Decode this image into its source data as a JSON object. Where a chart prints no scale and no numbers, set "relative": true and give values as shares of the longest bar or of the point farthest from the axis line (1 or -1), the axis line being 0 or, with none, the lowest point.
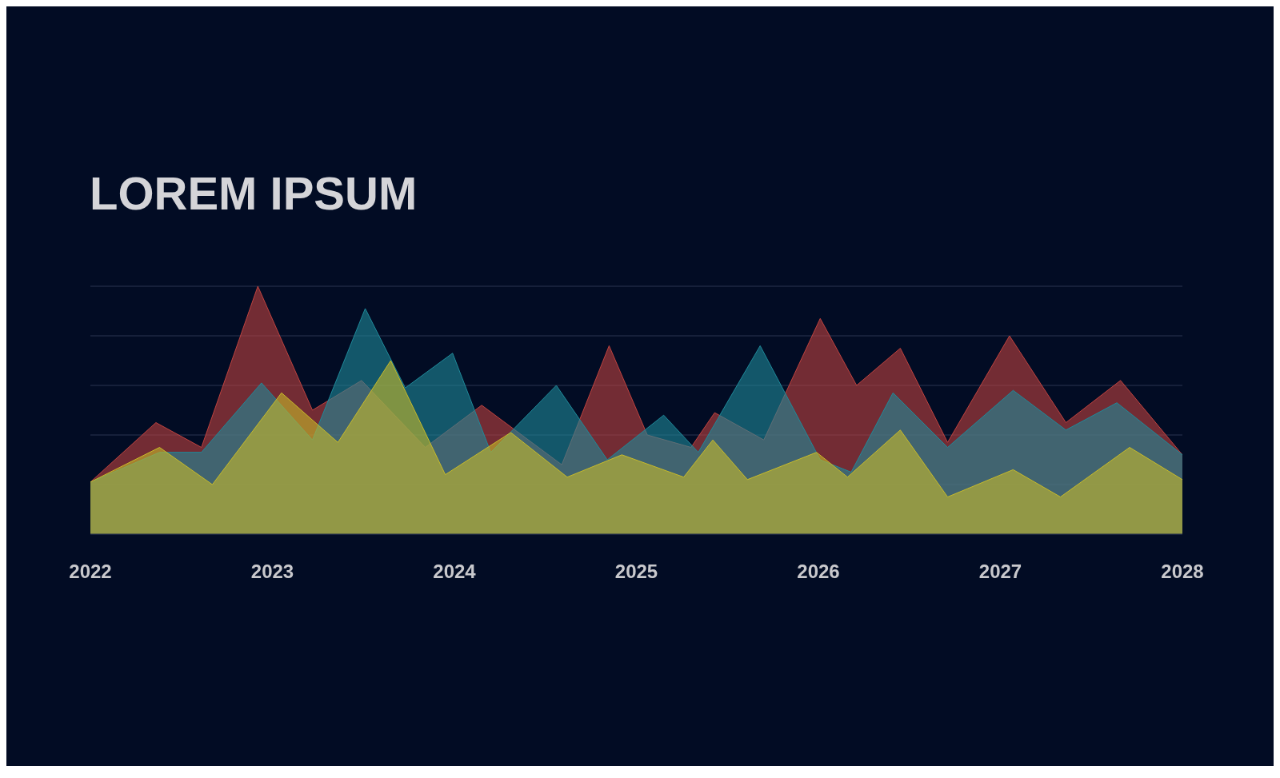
{
  "chart_data": {
    "type": "area",
    "title": "LOREM IPSUM",
    "relative": true,
    "grid": "y",
    "xlim": [
      2022,
      2028
    ],
    "xticks": [
      2022,
      2023,
      2024,
      2025,
      2026,
      2027,
      2028
    ],
    "series": [
      {
        "color": "#c0433f",
        "x": [
          2022,
          2022.36,
          2022.61,
          2022.92,
          2023.22,
          2023.49,
          2023.84,
          2024.15,
          2024.37,
          2024.59,
          2024.85,
          2025.06,
          2025.3,
          2025.43,
          2025.7,
          2026.01,
          2026.21,
          2026.45,
          2026.71,
          2027.05,
          2027.36,
          2027.66,
          2028
        ],
        "values": [
          0.21,
          0.45,
          0.35,
          1,
          0.5,
          0.62,
          0.35,
          0.52,
          0.4,
          0.28,
          0.76,
          0.4,
          0.35,
          0.49,
          0.38,
          0.87,
          0.6,
          0.75,
          0.37,
          0.8,
          0.45,
          0.62,
          0.32
        ]
      },
      {
        "color": "#1f8a9a",
        "x": [
          2022,
          2022.38,
          2022.61,
          2022.94,
          2023.22,
          2023.51,
          2023.73,
          2023.99,
          2024.2,
          2024.56,
          2024.84,
          2025.15,
          2025.34,
          2025.68,
          2026.01,
          2026.18,
          2026.41,
          2026.71,
          2027.07,
          2027.36,
          2027.64,
          2028
        ],
        "values": [
          0.21,
          0.33,
          0.33,
          0.61,
          0.38,
          0.91,
          0.59,
          0.73,
          0.33,
          0.6,
          0.3,
          0.48,
          0.33,
          0.76,
          0.3,
          0.25,
          0.57,
          0.35,
          0.58,
          0.42,
          0.53,
          0.32
        ]
      },
      {
        "color": "#c8bb2a",
        "x": [
          2022,
          2022.38,
          2022.67,
          2023.05,
          2023.36,
          2023.65,
          2023.95,
          2024.31,
          2024.62,
          2024.92,
          2025.26,
          2025.42,
          2025.61,
          2025.99,
          2026.16,
          2026.45,
          2026.71,
          2027.07,
          2027.33,
          2027.71,
          2028
        ],
        "values": [
          0.21,
          0.35,
          0.2,
          0.57,
          0.37,
          0.7,
          0.24,
          0.41,
          0.23,
          0.32,
          0.23,
          0.38,
          0.22,
          0.33,
          0.23,
          0.42,
          0.15,
          0.26,
          0.15,
          0.35,
          0.22
        ]
      }
    ]
  }
}
